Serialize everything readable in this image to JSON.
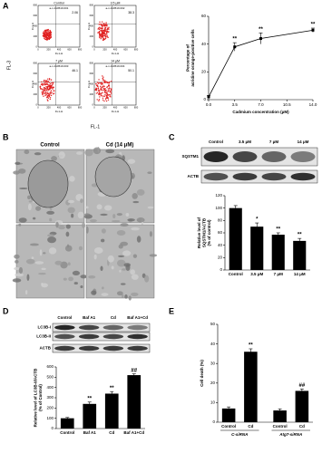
{
  "panels": {
    "a": "A",
    "b": "B",
    "c": "C",
    "d": "D",
    "e": "E"
  },
  "flow": {
    "y_axis": "FL-3",
    "x_axis": "FL-1",
    "x_channel": "FL1-H",
    "y_channel": "FL3-H",
    "ticks": [
      0,
      200,
      400,
      600,
      800
    ],
    "plots": [
      {
        "label": "Control",
        "sample": "a-n-110519.001",
        "percent": 2.06
      },
      {
        "label": "3.5 μM",
        "sample": "a-n-110519.002",
        "percent": 38.3
      },
      {
        "label": "7 μM",
        "sample": "a-n-110519.003",
        "percent": 46.1
      },
      {
        "label": "14 μM",
        "sample": "a-n-110519.004",
        "percent": 50.1
      }
    ]
  },
  "micrographs": {
    "columns": [
      "Control",
      "Cd (14 μM)"
    ]
  },
  "blot_c": {
    "lanes": [
      "Control",
      "3.5 μM",
      "7 μM",
      "14 μM"
    ],
    "bands": [
      "SQSTM1",
      "ACTB"
    ]
  },
  "blot_d": {
    "lanes": [
      "Control",
      "Baf A1",
      "Cd",
      "Baf A1+Cd"
    ],
    "bands": [
      "LC3B-I",
      "LC3B-II",
      "ACTB"
    ]
  },
  "chart_data": [
    {
      "type": "line",
      "ylabel": [
        "Percentage of",
        "acridine orange-positive cells"
      ],
      "xlabel": "Cadmium concentration (μM)",
      "x": [
        0,
        3.5,
        7,
        14
      ],
      "values": [
        2,
        38,
        44,
        50
      ],
      "errors": [
        1,
        3,
        4,
        1.5
      ],
      "annotations": [
        null,
        "**",
        "**",
        "**"
      ],
      "color": "#000000",
      "xlim": [
        0,
        14
      ],
      "xticks": [
        {
          "value": 0,
          "label": "0.0"
        },
        3.5,
        {
          "value": 7,
          "label": "7.0"
        },
        10.5,
        {
          "value": 14,
          "label": "14.0"
        }
      ],
      "ylim": [
        0,
        60
      ],
      "yticks": [
        0,
        20,
        40,
        60
      ]
    },
    {
      "type": "bar",
      "ylabel": [
        "Relative level of",
        "SQSTM1/ACTB",
        "(% of control)"
      ],
      "categories": [
        "Control",
        "3.5 μM",
        "7 μM",
        "14 μM"
      ],
      "values": [
        100,
        70,
        57,
        47
      ],
      "errors": [
        4,
        6,
        3,
        4
      ],
      "annotations": [
        null,
        "*",
        "**",
        "**"
      ],
      "color": "#000000",
      "ylim": [
        0,
        120
      ],
      "yticks": [
        0,
        20,
        40,
        60,
        80,
        100,
        120
      ]
    },
    {
      "type": "bar",
      "ylabel": [
        "Relative level of LC3B-II/ACTB",
        "(% of Control)"
      ],
      "categories": [
        "Control",
        "Baf A1",
        "Cd",
        "Baf A1+Cd"
      ],
      "values": [
        100,
        240,
        340,
        520
      ],
      "errors": [
        8,
        18,
        20,
        12
      ],
      "annotations": [
        null,
        "**",
        "**",
        "##"
      ],
      "color": "#000000",
      "ylim": [
        0,
        600
      ],
      "yticks": [
        0,
        100,
        200,
        300,
        400,
        500,
        600
      ]
    },
    {
      "type": "bar",
      "ylabel": [
        "Cell death (%)"
      ],
      "categories": [
        "Control",
        "Cd",
        "Control",
        "Cd"
      ],
      "groups": [
        "C-siRNA",
        "Atg7-siRNA"
      ],
      "values": [
        7,
        36,
        6,
        16
      ],
      "errors": [
        0.8,
        1.5,
        0.8,
        1
      ],
      "annotations": [
        null,
        "**",
        null,
        "##"
      ],
      "color": "#000000",
      "ylim": [
        0,
        50
      ],
      "yticks": [
        0,
        10,
        20,
        30,
        40,
        50
      ]
    }
  ]
}
